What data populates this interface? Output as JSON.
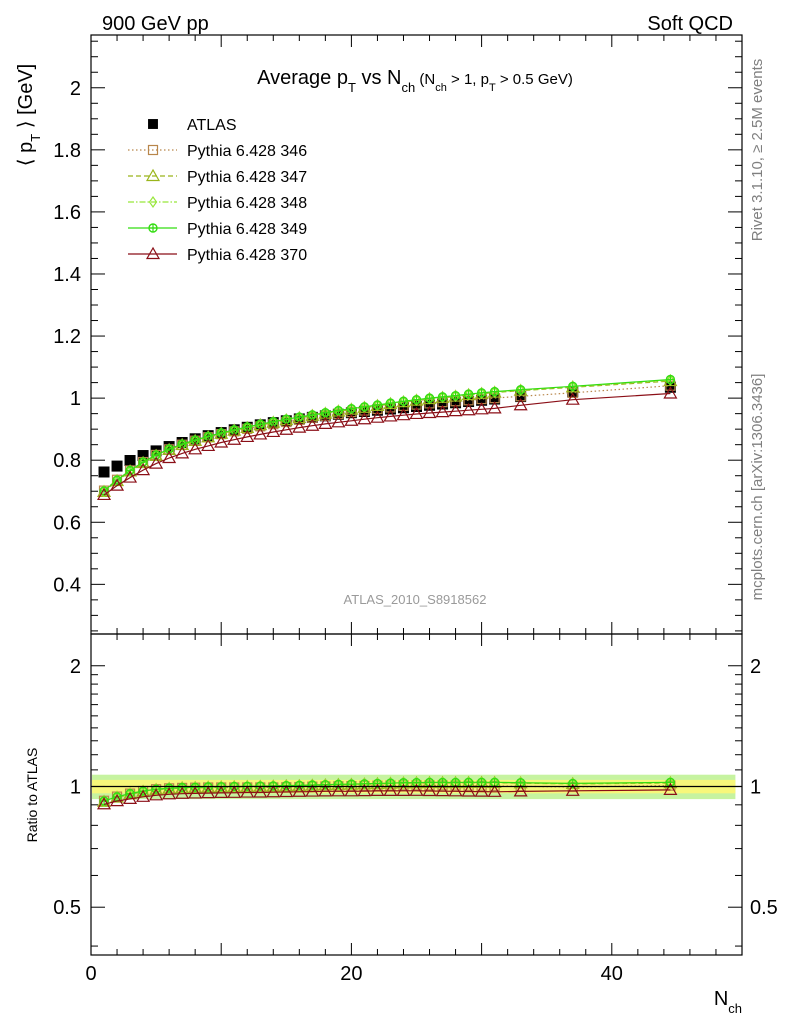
{
  "header": {
    "left": "900 GeV pp",
    "right": "Soft QCD"
  },
  "side_labels": {
    "rivet": "Rivet 3.1.10, ≥ 2.5M events",
    "mcplots": "mcplots.cern.ch [arXiv:1306.3436]"
  },
  "watermark": "ATLAS_2010_S8918562",
  "colors": {
    "atlas": "#000000",
    "p346": "#b8864b",
    "p347": "#9ab51b",
    "p348": "#98e63a",
    "p349": "#33dd11",
    "p370": "#8b0f17",
    "band_inner": "#f7f77a",
    "band_outer": "#c6f3a0"
  },
  "chart_data": {
    "type": "line",
    "title": {
      "main": "Average p",
      "main_sub": "T",
      "vs": " vs N",
      "vs_sub": "ch",
      "cond_open": " (N",
      "cond_sub1": "ch",
      "cond_mid": " > 1, p",
      "cond_sub2": "T",
      "cond_close": " > 0.5 GeV)"
    },
    "ylabel": {
      "pre": "⟨ p",
      "sub": "T",
      "post": " ⟩  [GeV]"
    },
    "xlabel": {
      "main": "N",
      "sub": "ch"
    },
    "ratio_ylabel": "Ratio to ATLAS",
    "xlim": [
      0,
      50
    ],
    "ylim": [
      0.24,
      2.17
    ],
    "ratio_ylim": [
      0.38,
      2.4
    ],
    "xticks": [
      0,
      20,
      40
    ],
    "yticks": [
      0.4,
      0.6,
      0.8,
      1,
      1.2,
      1.4,
      1.6,
      1.8,
      2
    ],
    "ratio_yticks": [
      0.5,
      1,
      2
    ],
    "x": [
      1,
      2,
      3,
      4,
      5,
      6,
      7,
      8,
      9,
      10,
      11,
      12,
      13,
      14,
      15,
      16,
      17,
      18,
      19,
      20,
      21,
      22,
      23,
      24,
      25,
      26,
      27,
      28,
      29,
      30,
      31,
      33,
      37,
      44.5
    ],
    "series": [
      {
        "name": "ATLAS",
        "key": "atlas",
        "marker": "filled-square",
        "line": "none",
        "values": [
          0.762,
          0.781,
          0.799,
          0.815,
          0.83,
          0.844,
          0.857,
          0.869,
          0.879,
          0.889,
          0.898,
          0.906,
          0.914,
          0.921,
          0.927,
          0.933,
          0.938,
          0.943,
          0.948,
          0.953,
          0.957,
          0.961,
          0.965,
          0.969,
          0.973,
          0.977,
          0.981,
          0.985,
          0.989,
          0.993,
          0.997,
          1.005,
          1.02,
          1.035
        ],
        "band_halfwidth": 0.07
      },
      {
        "name": "Pythia 6.428 346",
        "key": "p346",
        "marker": "open-square",
        "line": "dotted",
        "values": [
          0.702,
          0.737,
          0.767,
          0.794,
          0.817,
          0.835,
          0.85,
          0.863,
          0.874,
          0.884,
          0.893,
          0.901,
          0.909,
          0.916,
          0.923,
          0.93,
          0.937,
          0.943,
          0.949,
          0.955,
          0.96,
          0.965,
          0.97,
          0.975,
          0.979,
          0.983,
          0.987,
          0.99,
          0.993,
          0.997,
          1.0,
          1.006,
          1.017,
          1.04
        ]
      },
      {
        "name": "Pythia 6.428 347",
        "key": "p347",
        "marker": "open-triangle",
        "line": "dashed",
        "values": [
          0.698,
          0.733,
          0.764,
          0.791,
          0.814,
          0.833,
          0.849,
          0.862,
          0.874,
          0.885,
          0.895,
          0.904,
          0.913,
          0.921,
          0.929,
          0.936,
          0.943,
          0.95,
          0.957,
          0.963,
          0.969,
          0.975,
          0.981,
          0.987,
          0.992,
          0.997,
          1.001,
          1.005,
          1.01,
          1.014,
          1.018,
          1.024,
          1.035,
          1.055
        ]
      },
      {
        "name": "Pythia 6.428 348",
        "key": "p348",
        "marker": "open-diamond",
        "line": "dashdot",
        "values": [
          0.7,
          0.735,
          0.766,
          0.793,
          0.816,
          0.835,
          0.851,
          0.864,
          0.876,
          0.887,
          0.897,
          0.906,
          0.915,
          0.923,
          0.931,
          0.938,
          0.945,
          0.952,
          0.959,
          0.965,
          0.971,
          0.977,
          0.983,
          0.989,
          0.994,
          0.999,
          1.003,
          1.007,
          1.012,
          1.016,
          1.02,
          1.026,
          1.037,
          1.058
        ]
      },
      {
        "name": "Pythia 6.428 349",
        "key": "p349",
        "marker": "circle-plus",
        "line": "solid",
        "values": [
          0.701,
          0.736,
          0.767,
          0.794,
          0.817,
          0.836,
          0.852,
          0.865,
          0.877,
          0.888,
          0.898,
          0.907,
          0.916,
          0.924,
          0.932,
          0.939,
          0.946,
          0.953,
          0.96,
          0.966,
          0.972,
          0.978,
          0.984,
          0.99,
          0.995,
          1.0,
          1.004,
          1.008,
          1.013,
          1.017,
          1.021,
          1.027,
          1.038,
          1.06
        ]
      },
      {
        "name": "Pythia 6.428 370",
        "key": "p370",
        "marker": "open-triangle",
        "line": "solid",
        "values": [
          0.688,
          0.718,
          0.744,
          0.768,
          0.789,
          0.807,
          0.822,
          0.835,
          0.846,
          0.857,
          0.866,
          0.875,
          0.883,
          0.891,
          0.898,
          0.905,
          0.911,
          0.917,
          0.922,
          0.927,
          0.932,
          0.937,
          0.941,
          0.945,
          0.949,
          0.952,
          0.955,
          0.958,
          0.961,
          0.964,
          0.967,
          0.977,
          0.995,
          1.015
        ]
      }
    ],
    "legend_position": "top-left",
    "grid": false
  }
}
